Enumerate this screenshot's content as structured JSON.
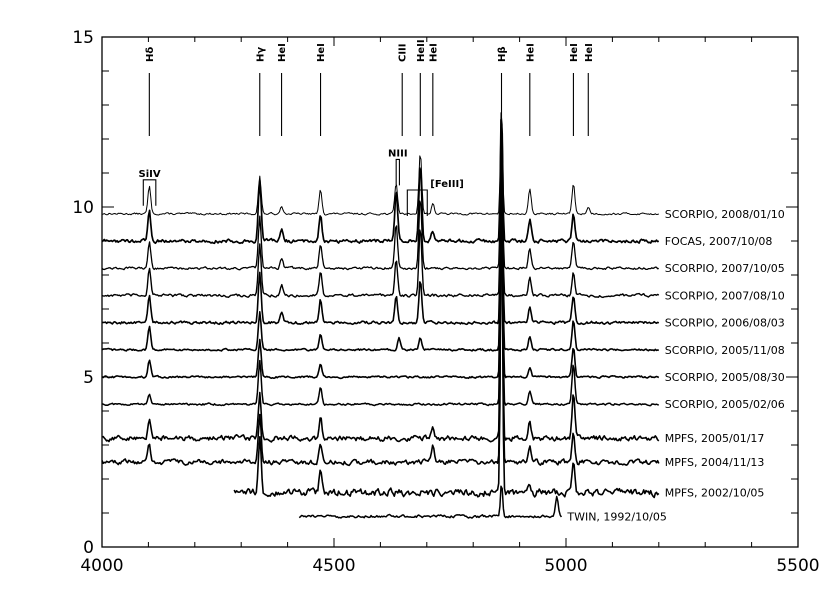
{
  "chart_data": {
    "type": "line",
    "title": "",
    "xlabel": "",
    "ylabel": "",
    "xlim": [
      4000,
      5500
    ],
    "ylim": [
      0,
      15
    ],
    "x_ticks": [
      4000,
      4500,
      5000,
      5500
    ],
    "y_ticks": [
      0,
      5,
      10,
      15
    ],
    "grid": false,
    "colors": {
      "line": "#000000",
      "background": "#ffffff"
    },
    "line_ids_top": [
      {
        "label": "Hδ",
        "x": 4102
      },
      {
        "label": "Hγ",
        "x": 4340
      },
      {
        "label": "HeI",
        "x": 4387
      },
      {
        "label": "HeI",
        "x": 4471
      },
      {
        "label": "CIII",
        "x": 4647
      },
      {
        "label": "HeII",
        "x": 4686
      },
      {
        "label": "HeI",
        "x": 4713
      },
      {
        "label": "Hβ",
        "x": 4861
      },
      {
        "label": "HeI",
        "x": 4922
      },
      {
        "label": "HeI",
        "x": 5016
      },
      {
        "label": "HeI",
        "x": 5048
      }
    ],
    "line_ids_mid": [
      {
        "label": "SiIV",
        "x1": 4089,
        "x2": 4116,
        "y": 10.8
      },
      {
        "label": "NIII",
        "x1": 4634,
        "x2": 4641,
        "y": 11.4
      },
      {
        "label": "[FeIII]",
        "x1": 4658,
        "x2": 4701,
        "y": 10.5
      }
    ],
    "series": [
      {
        "name": "SCORPIO, 2008/01/10",
        "x_range": [
          4000,
          5200
        ],
        "baseline": 9.8,
        "noise": 0.05,
        "lw": 1.0,
        "lines": [
          [
            4102,
            0.8
          ],
          [
            4340,
            1.1
          ],
          [
            4387,
            0.25
          ],
          [
            4471,
            0.7
          ],
          [
            4634,
            0.9
          ],
          [
            4686,
            1.8
          ],
          [
            4713,
            0.3
          ],
          [
            4861,
            3.3
          ],
          [
            4922,
            0.7
          ],
          [
            5016,
            0.9
          ],
          [
            5048,
            0.2
          ]
        ]
      },
      {
        "name": "FOCAS, 2007/10/08",
        "x_range": [
          4000,
          5200
        ],
        "baseline": 9.0,
        "noise": 0.09,
        "lw": 1.7,
        "lines": [
          [
            4102,
            0.9
          ],
          [
            4340,
            1.8
          ],
          [
            4387,
            0.35
          ],
          [
            4471,
            0.8
          ],
          [
            4634,
            1.5
          ],
          [
            4686,
            2.3
          ],
          [
            4713,
            0.3
          ],
          [
            4861,
            4.0
          ],
          [
            4922,
            0.6
          ],
          [
            5016,
            0.8
          ]
        ]
      },
      {
        "name": "SCORPIO, 2007/10/05",
        "x_range": [
          4000,
          5200
        ],
        "baseline": 8.2,
        "noise": 0.06,
        "lw": 1.3,
        "lines": [
          [
            4102,
            0.8
          ],
          [
            4340,
            1.5
          ],
          [
            4387,
            0.3
          ],
          [
            4471,
            0.7
          ],
          [
            4634,
            1.3
          ],
          [
            4686,
            2.1
          ],
          [
            4861,
            4.4
          ],
          [
            4922,
            0.6
          ],
          [
            5016,
            0.8
          ]
        ]
      },
      {
        "name": "SCORPIO, 2007/08/10",
        "x_range": [
          4000,
          5200
        ],
        "baseline": 7.4,
        "noise": 0.07,
        "lw": 1.4,
        "lines": [
          [
            4102,
            0.8
          ],
          [
            4340,
            1.5
          ],
          [
            4387,
            0.3
          ],
          [
            4471,
            0.7
          ],
          [
            4634,
            1.1
          ],
          [
            4686,
            2.0
          ],
          [
            4861,
            4.8
          ],
          [
            4922,
            0.6
          ],
          [
            5016,
            0.7
          ]
        ]
      },
      {
        "name": "SCORPIO, 2006/08/03",
        "x_range": [
          4000,
          5200
        ],
        "baseline": 6.6,
        "noise": 0.07,
        "lw": 1.6,
        "lines": [
          [
            4102,
            0.8
          ],
          [
            4340,
            1.5
          ],
          [
            4387,
            0.3
          ],
          [
            4471,
            0.7
          ],
          [
            4634,
            0.8
          ],
          [
            4686,
            1.3
          ],
          [
            4861,
            5.1
          ],
          [
            4922,
            0.5
          ],
          [
            5016,
            0.8
          ]
        ]
      },
      {
        "name": "SCORPIO, 2005/11/08",
        "x_range": [
          4000,
          5200
        ],
        "baseline": 5.8,
        "noise": 0.05,
        "lw": 1.6,
        "lines": [
          [
            4102,
            0.7
          ],
          [
            4340,
            1.1
          ],
          [
            4471,
            0.5
          ],
          [
            4640,
            0.35
          ],
          [
            4686,
            0.35
          ],
          [
            4861,
            5.6
          ],
          [
            4922,
            0.4
          ],
          [
            5016,
            0.9
          ]
        ]
      },
      {
        "name": "SCORPIO, 2005/08/30",
        "x_range": [
          4000,
          5200
        ],
        "baseline": 5.0,
        "noise": 0.05,
        "lw": 1.6,
        "lines": [
          [
            4102,
            0.5
          ],
          [
            4340,
            1.1
          ],
          [
            4471,
            0.4
          ],
          [
            4861,
            6.2
          ],
          [
            4922,
            0.3
          ],
          [
            5016,
            0.9
          ]
        ]
      },
      {
        "name": "SCORPIO, 2005/02/06",
        "x_range": [
          4000,
          5200
        ],
        "baseline": 4.2,
        "noise": 0.05,
        "lw": 1.5,
        "lines": [
          [
            4102,
            0.3
          ],
          [
            4340,
            1.3
          ],
          [
            4471,
            0.5
          ],
          [
            4861,
            7.0
          ],
          [
            4922,
            0.4
          ],
          [
            5016,
            1.2
          ]
        ]
      },
      {
        "name": "MPFS, 2005/01/17",
        "x_range": [
          4000,
          5200
        ],
        "baseline": 3.2,
        "noise": 0.13,
        "lw": 1.6,
        "lines": [
          [
            4102,
            0.6
          ],
          [
            4340,
            1.3
          ],
          [
            4471,
            0.6
          ],
          [
            4713,
            0.4
          ],
          [
            4861,
            8.0
          ],
          [
            4922,
            0.5
          ],
          [
            5016,
            1.3
          ]
        ]
      },
      {
        "name": "MPFS, 2004/11/13",
        "x_range": [
          4000,
          5200
        ],
        "baseline": 2.5,
        "noise": 0.12,
        "lw": 1.6,
        "lines": [
          [
            4102,
            0.5
          ],
          [
            4340,
            1.4
          ],
          [
            4471,
            0.6
          ],
          [
            4713,
            0.5
          ],
          [
            4861,
            8.0
          ],
          [
            4922,
            0.5
          ],
          [
            5016,
            0.9
          ]
        ]
      },
      {
        "name": "MPFS, 2002/10/05",
        "x_range": [
          4285,
          5200
        ],
        "baseline": 1.6,
        "noise": 0.18,
        "lw": 1.6,
        "lines": [
          [
            4340,
            1.6
          ],
          [
            4471,
            0.6
          ],
          [
            4861,
            8.8
          ],
          [
            4922,
            0.3
          ],
          [
            5016,
            0.8
          ]
        ]
      },
      {
        "name": "TWIN, 1992/10/05",
        "x_range": [
          4425,
          4990
        ],
        "baseline": 0.9,
        "noise": 0.07,
        "lw": 1.5,
        "lines": [
          [
            4861,
            1.0
          ],
          [
            4980,
            0.6
          ]
        ]
      }
    ]
  }
}
